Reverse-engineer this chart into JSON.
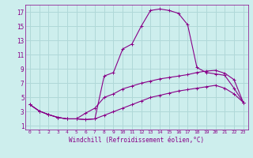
{
  "xlabel": "Windchill (Refroidissement éolien,°C)",
  "bg_color": "#cdeeed",
  "line_color": "#880088",
  "grid_color": "#b0d8d8",
  "xlim": [
    -0.5,
    23.5
  ],
  "ylim": [
    0.5,
    18
  ],
  "xticks": [
    0,
    1,
    2,
    3,
    4,
    5,
    6,
    7,
    8,
    9,
    10,
    11,
    12,
    13,
    14,
    15,
    16,
    17,
    18,
    19,
    20,
    21,
    22,
    23
  ],
  "yticks": [
    1,
    3,
    5,
    7,
    9,
    11,
    13,
    15,
    17
  ],
  "line1_x": [
    0,
    1,
    2,
    3,
    4,
    5,
    6,
    7,
    8,
    9,
    10,
    11,
    12,
    13,
    14,
    15,
    16,
    17,
    18,
    19,
    20,
    21,
    22,
    23
  ],
  "line1_y": [
    4.0,
    3.1,
    2.6,
    2.2,
    2.0,
    2.0,
    1.9,
    2.0,
    8.0,
    8.5,
    11.8,
    12.5,
    15.0,
    17.2,
    17.4,
    17.2,
    16.8,
    15.2,
    9.2,
    8.5,
    8.3,
    8.1,
    6.3,
    4.3
  ],
  "line2_x": [
    0,
    1,
    2,
    3,
    4,
    5,
    6,
    7,
    8,
    9,
    10,
    11,
    12,
    13,
    14,
    15,
    16,
    17,
    18,
    19,
    20,
    21,
    22,
    23
  ],
  "line2_y": [
    4.0,
    3.1,
    2.6,
    2.2,
    2.0,
    2.0,
    2.8,
    3.5,
    5.0,
    5.5,
    6.2,
    6.6,
    7.0,
    7.3,
    7.6,
    7.8,
    8.0,
    8.2,
    8.5,
    8.7,
    8.8,
    8.4,
    7.5,
    4.3
  ],
  "line3_x": [
    0,
    1,
    2,
    3,
    4,
    5,
    6,
    7,
    8,
    9,
    10,
    11,
    12,
    13,
    14,
    15,
    16,
    17,
    18,
    19,
    20,
    21,
    22,
    23
  ],
  "line3_y": [
    4.0,
    3.1,
    2.6,
    2.2,
    2.0,
    2.0,
    1.9,
    2.0,
    2.5,
    3.0,
    3.5,
    4.0,
    4.5,
    5.0,
    5.3,
    5.6,
    5.9,
    6.1,
    6.3,
    6.5,
    6.7,
    6.3,
    5.5,
    4.3
  ]
}
